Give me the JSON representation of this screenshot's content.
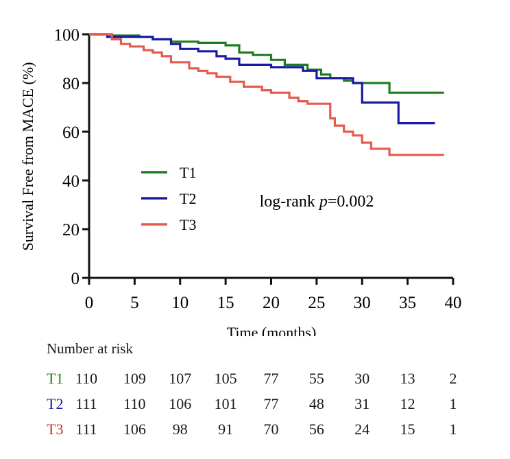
{
  "chart_data": {
    "type": "line",
    "subtype": "kaplan-meier step",
    "xlabel": "Time (months)",
    "ylabel": "Survival Free from MACE (%)",
    "xlim": [
      0,
      40
    ],
    "ylim": [
      0,
      100
    ],
    "x_ticks": [
      0,
      5,
      10,
      15,
      20,
      25,
      30,
      35,
      40
    ],
    "y_ticks": [
      0,
      20,
      40,
      60,
      80,
      100
    ],
    "annotation": {
      "prefix": "log-rank ",
      "p_symbol": "p",
      "value": "=0.002"
    },
    "legend_position": "left-middle",
    "series": [
      {
        "name": "T1",
        "color": "#1e7d1e",
        "x": [
          0,
          2.5,
          5.5,
          7,
          9,
          12,
          15,
          16.5,
          18,
          20,
          21.5,
          24,
          25.5,
          26.5,
          28,
          29,
          33,
          39
        ],
        "y": [
          100,
          99.5,
          99,
          98,
          97,
          96.5,
          95.5,
          92.5,
          91.5,
          89.5,
          87.5,
          85.5,
          83.5,
          82,
          81,
          80,
          76,
          76
        ]
      },
      {
        "name": "T2",
        "color": "#1a1aa6",
        "x": [
          0,
          2,
          7,
          9,
          10,
          12,
          14,
          15,
          16.5,
          20,
          23.5,
          25,
          29,
          30,
          34,
          38
        ],
        "y": [
          100,
          99,
          98,
          96,
          94,
          93,
          91,
          90,
          87.5,
          86.5,
          85,
          82,
          80,
          72,
          63.5,
          63.5
        ]
      },
      {
        "name": "T3",
        "color": "#e55a4e",
        "x": [
          0,
          2.5,
          3.5,
          4.5,
          6,
          7,
          8,
          9,
          11,
          12,
          13,
          14,
          15.5,
          17,
          19,
          20,
          22,
          23,
          24,
          25.5,
          26.5,
          27,
          28,
          29,
          30,
          31,
          33,
          39
        ],
        "y": [
          100,
          98,
          96,
          95,
          93.5,
          92.5,
          91,
          88.5,
          86,
          85,
          84,
          82.5,
          80.5,
          78.5,
          77,
          76,
          74,
          72.5,
          71.5,
          71.5,
          65.5,
          62.5,
          60,
          58.5,
          55.5,
          53,
          50.5,
          50.5
        ]
      }
    ],
    "risk_table": {
      "title": "Number at risk",
      "timepoints": [
        0,
        5,
        10,
        15,
        20,
        25,
        30,
        35,
        40
      ],
      "rows": [
        {
          "label": "T1",
          "color": "#1e7d1e",
          "values": [
            "110",
            "109",
            "107",
            "105",
            "77",
            "55",
            "30",
            "13",
            "2"
          ]
        },
        {
          "label": "T2",
          "color": "#1a1aa6",
          "values": [
            "111",
            "110",
            "106",
            "101",
            "77",
            "48",
            "31",
            "12",
            "1"
          ]
        },
        {
          "label": "T3",
          "color": "#d42d22",
          "values": [
            "111",
            "106",
            "98",
            "91",
            "70",
            "56",
            "24",
            "15",
            "1"
          ]
        }
      ]
    }
  }
}
